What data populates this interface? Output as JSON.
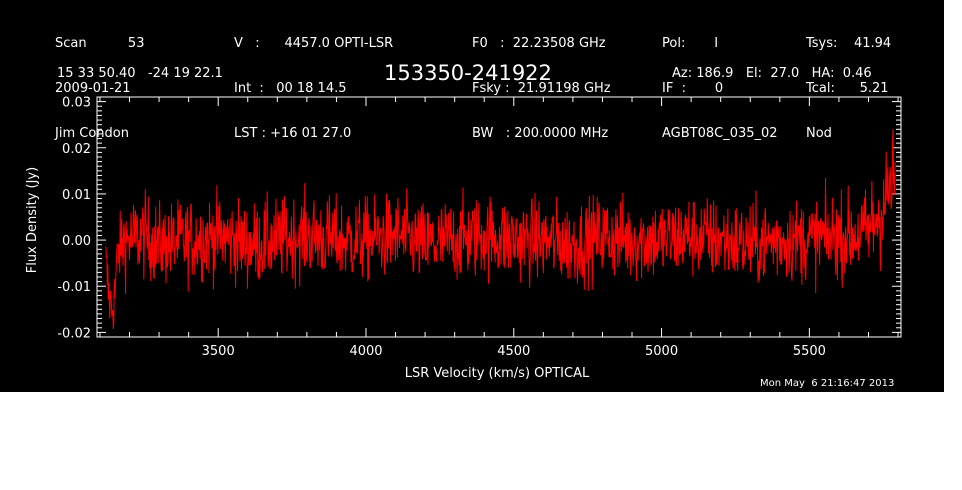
{
  "header": {
    "col1": [
      "Scan          53",
      "2009-01-21",
      "Jim Condon"
    ],
    "col2": [
      "V   :      4457.0 OPTI-LSR",
      "Int  :   00 18 14.5",
      "LST : +16 01 27.0"
    ],
    "col3": [
      "F0   :  22.23508 GHz",
      "Fsky :  21.91198 GHz",
      "BW   : 200.0000 MHz"
    ],
    "col4": [
      "Pol:       I",
      "IF  :       0",
      "AGBT08C_035_02"
    ],
    "col5": [
      "Tsys:    41.94",
      "Tcal:      5.21",
      "Nod"
    ],
    "coords": "15 33 50.40   -24 19 22.1",
    "source": "153350-241922",
    "azel": "Az: 186.9   El:  27.0   HA:  0.46"
  },
  "footer": {
    "timestamp": "Mon May  6 21:16:47 2013"
  },
  "colors": {
    "background": "#000000",
    "axes": "#ffffff",
    "series": "#ff0000"
  },
  "chart_data": {
    "type": "line",
    "title": "153350-241922",
    "xlabel": "LSR Velocity (km/s) OPTICAL",
    "ylabel": "Flux Density (Jy)",
    "xlim": [
      3090,
      5810
    ],
    "ylim": [
      -0.021,
      0.031
    ],
    "xticks": [
      3500,
      4000,
      4500,
      5000,
      5500
    ],
    "xtick_labels": [
      "3500",
      "4000",
      "4500",
      "5000",
      "5500"
    ],
    "yticks": [
      -0.02,
      -0.01,
      0.0,
      0.01,
      0.02,
      0.03
    ],
    "ytick_labels": [
      "-0.02",
      "-0.01",
      "0.00",
      "0.01",
      "0.02",
      "0.03"
    ],
    "grid": false,
    "legend": "none",
    "series": [
      {
        "description": "noise-dominated spectrum, mean ~0.00 Jy, scatter ~±0.01 Jy",
        "x": [
          3120,
          3130,
          3140,
          3150,
          3160,
          3180,
          3200,
          3250,
          3300,
          3400,
          3500,
          3600,
          3700,
          3800,
          3900,
          4000,
          4100,
          4200,
          4300,
          4400,
          4500,
          4600,
          4700,
          4800,
          4900,
          5000,
          5100,
          5200,
          5300,
          5400,
          5500,
          5600,
          5650,
          5700,
          5720,
          5740,
          5760,
          5770,
          5780,
          5790
        ],
        "y": [
          -0.005,
          -0.012,
          -0.015,
          -0.012,
          -0.003,
          0.0,
          0.0,
          0.001,
          -0.001,
          0.0,
          0.001,
          -0.001,
          0.0,
          0.001,
          0.0,
          0.0,
          0.001,
          -0.001,
          0.0,
          0.001,
          0.0,
          0.0,
          -0.001,
          0.001,
          0.0,
          0.0,
          0.001,
          0.0,
          -0.001,
          0.0,
          0.0,
          0.001,
          0.001,
          0.002,
          0.004,
          0.006,
          0.009,
          0.011,
          0.012,
          0.014
        ],
        "noise_sigma": 0.0045
      }
    ]
  }
}
